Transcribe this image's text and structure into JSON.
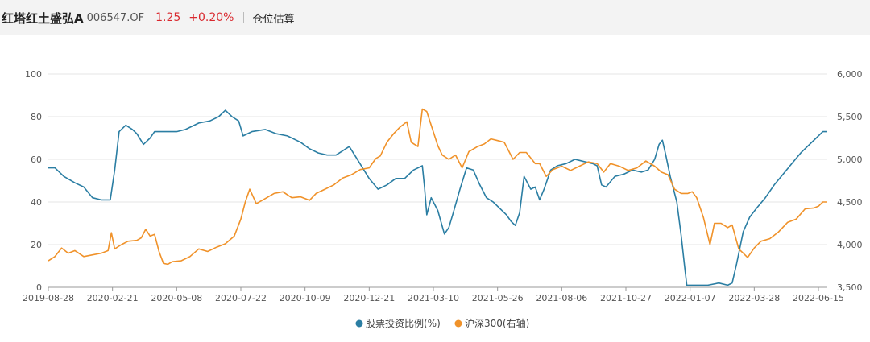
{
  "header": {
    "fund_name": "红塔红土盛弘A",
    "fund_code": "006547.OF",
    "nav": "1.25",
    "change": "+0.20%",
    "tab_label": "仓位估算",
    "up_color": "#d9282e"
  },
  "chart_data": {
    "type": "line",
    "title": "",
    "x_ticks": [
      "2019-08-28",
      "2020-02-21",
      "2020-05-08",
      "2020-07-22",
      "2020-10-09",
      "2020-12-21",
      "2021-03-10",
      "2021-05-26",
      "2021-08-06",
      "2021-10-27",
      "2022-01-07",
      "2022-03-28",
      "2022-06-15"
    ],
    "y_left": {
      "ticks": [
        "0",
        "20",
        "40",
        "60",
        "80",
        "100"
      ],
      "lim": [
        0,
        100
      ]
    },
    "y_right": {
      "ticks": [
        "3,500",
        "4,000",
        "4,500",
        "5,000",
        "5,500",
        "6,000"
      ],
      "lim": [
        3500,
        6000
      ]
    },
    "grid": true,
    "legend_position": "bottom",
    "series": [
      {
        "name": "股票投资比例(%)",
        "axis": "left",
        "color": "#2b7ea3",
        "points": [
          [
            0,
            56
          ],
          [
            0.3,
            56
          ],
          [
            0.7,
            52
          ],
          [
            1.2,
            49
          ],
          [
            1.6,
            47
          ],
          [
            2.0,
            42
          ],
          [
            2.4,
            41
          ],
          [
            2.8,
            41
          ],
          [
            3.0,
            55
          ],
          [
            3.2,
            73
          ],
          [
            3.5,
            76
          ],
          [
            3.8,
            74
          ],
          [
            4.0,
            72
          ],
          [
            4.3,
            67
          ],
          [
            4.6,
            70
          ],
          [
            4.8,
            73
          ],
          [
            5.3,
            73
          ],
          [
            5.8,
            73
          ],
          [
            6.2,
            74
          ],
          [
            6.8,
            77
          ],
          [
            7.3,
            78
          ],
          [
            7.7,
            80
          ],
          [
            8.0,
            83
          ],
          [
            8.3,
            80
          ],
          [
            8.6,
            78
          ],
          [
            8.8,
            71
          ],
          [
            9.2,
            73
          ],
          [
            9.8,
            74
          ],
          [
            10.3,
            72
          ],
          [
            10.8,
            71
          ],
          [
            11.4,
            68
          ],
          [
            11.8,
            65
          ],
          [
            12.2,
            63
          ],
          [
            12.6,
            62
          ],
          [
            13.0,
            62
          ],
          [
            13.3,
            64
          ],
          [
            13.6,
            66
          ],
          [
            13.9,
            61
          ],
          [
            14.2,
            56
          ],
          [
            14.5,
            51
          ],
          [
            14.9,
            46
          ],
          [
            15.3,
            48
          ],
          [
            15.7,
            51
          ],
          [
            16.1,
            51
          ],
          [
            16.5,
            55
          ],
          [
            16.9,
            57
          ],
          [
            17.0,
            47
          ],
          [
            17.1,
            34
          ],
          [
            17.3,
            42
          ],
          [
            17.6,
            36
          ],
          [
            17.9,
            25
          ],
          [
            18.1,
            28
          ],
          [
            18.3,
            35
          ],
          [
            18.6,
            46
          ],
          [
            18.9,
            56
          ],
          [
            19.2,
            55
          ],
          [
            19.5,
            48
          ],
          [
            19.8,
            42
          ],
          [
            20.1,
            40
          ],
          [
            20.4,
            37
          ],
          [
            20.7,
            34
          ],
          [
            20.9,
            31
          ],
          [
            21.1,
            29
          ],
          [
            21.3,
            35
          ],
          [
            21.5,
            52
          ],
          [
            21.8,
            46
          ],
          [
            22.0,
            47
          ],
          [
            22.2,
            41
          ],
          [
            22.4,
            46
          ],
          [
            22.7,
            55
          ],
          [
            23.0,
            57
          ],
          [
            23.4,
            58
          ],
          [
            23.8,
            60
          ],
          [
            24.2,
            59
          ],
          [
            24.6,
            58
          ],
          [
            24.8,
            57
          ],
          [
            25.0,
            48
          ],
          [
            25.2,
            47
          ],
          [
            25.6,
            52
          ],
          [
            26.0,
            53
          ],
          [
            26.4,
            55
          ],
          [
            26.8,
            54
          ],
          [
            27.1,
            55
          ],
          [
            27.4,
            60
          ],
          [
            27.6,
            67
          ],
          [
            27.75,
            69
          ],
          [
            27.9,
            62
          ],
          [
            28.1,
            52
          ],
          [
            28.4,
            40
          ],
          [
            28.6,
            24
          ],
          [
            28.75,
            10
          ],
          [
            28.85,
            1
          ],
          [
            29.2,
            1
          ],
          [
            29.8,
            1
          ],
          [
            30.3,
            2
          ],
          [
            30.7,
            1
          ],
          [
            30.9,
            2
          ],
          [
            31.1,
            11
          ],
          [
            31.4,
            26
          ],
          [
            31.7,
            33
          ],
          [
            32.0,
            37
          ],
          [
            32.4,
            42
          ],
          [
            32.8,
            48
          ],
          [
            33.2,
            53
          ],
          [
            33.6,
            58
          ],
          [
            34.0,
            63
          ],
          [
            34.4,
            67
          ],
          [
            34.7,
            70
          ],
          [
            35.0,
            73
          ],
          [
            35.2,
            73
          ]
        ]
      },
      {
        "name": "沪深300(右轴)",
        "axis": "right",
        "color": "#f0922a",
        "points": [
          [
            0,
            3810
          ],
          [
            0.3,
            3860
          ],
          [
            0.6,
            3960
          ],
          [
            0.9,
            3900
          ],
          [
            1.2,
            3930
          ],
          [
            1.6,
            3860
          ],
          [
            2.0,
            3880
          ],
          [
            2.4,
            3900
          ],
          [
            2.7,
            3930
          ],
          [
            2.85,
            4140
          ],
          [
            3.0,
            3950
          ],
          [
            3.3,
            4000
          ],
          [
            3.6,
            4040
          ],
          [
            4.0,
            4050
          ],
          [
            4.2,
            4080
          ],
          [
            4.4,
            4180
          ],
          [
            4.6,
            4100
          ],
          [
            4.8,
            4120
          ],
          [
            5.0,
            3920
          ],
          [
            5.2,
            3780
          ],
          [
            5.4,
            3770
          ],
          [
            5.6,
            3800
          ],
          [
            6.0,
            3810
          ],
          [
            6.4,
            3860
          ],
          [
            6.8,
            3950
          ],
          [
            7.2,
            3920
          ],
          [
            7.6,
            3970
          ],
          [
            8.0,
            4010
          ],
          [
            8.4,
            4100
          ],
          [
            8.7,
            4300
          ],
          [
            8.9,
            4500
          ],
          [
            9.1,
            4650
          ],
          [
            9.4,
            4480
          ],
          [
            9.8,
            4540
          ],
          [
            10.2,
            4600
          ],
          [
            10.6,
            4620
          ],
          [
            11.0,
            4550
          ],
          [
            11.4,
            4560
          ],
          [
            11.8,
            4520
          ],
          [
            12.1,
            4600
          ],
          [
            12.5,
            4650
          ],
          [
            12.9,
            4700
          ],
          [
            13.3,
            4780
          ],
          [
            13.7,
            4820
          ],
          [
            14.1,
            4880
          ],
          [
            14.5,
            4900
          ],
          [
            14.8,
            5010
          ],
          [
            15.0,
            5040
          ],
          [
            15.3,
            5200
          ],
          [
            15.6,
            5300
          ],
          [
            15.9,
            5380
          ],
          [
            16.2,
            5440
          ],
          [
            16.4,
            5200
          ],
          [
            16.7,
            5150
          ],
          [
            16.9,
            5590
          ],
          [
            17.1,
            5560
          ],
          [
            17.3,
            5400
          ],
          [
            17.6,
            5160
          ],
          [
            17.8,
            5050
          ],
          [
            18.1,
            5000
          ],
          [
            18.4,
            5050
          ],
          [
            18.7,
            4900
          ],
          [
            19.0,
            5090
          ],
          [
            19.4,
            5150
          ],
          [
            19.7,
            5180
          ],
          [
            20.0,
            5240
          ],
          [
            20.3,
            5220
          ],
          [
            20.6,
            5200
          ],
          [
            21.0,
            5000
          ],
          [
            21.3,
            5080
          ],
          [
            21.6,
            5080
          ],
          [
            22.0,
            4950
          ],
          [
            22.2,
            4950
          ],
          [
            22.5,
            4800
          ],
          [
            22.8,
            4880
          ],
          [
            23.2,
            4920
          ],
          [
            23.6,
            4870
          ],
          [
            24.0,
            4920
          ],
          [
            24.4,
            4970
          ],
          [
            24.8,
            4950
          ],
          [
            25.1,
            4850
          ],
          [
            25.4,
            4950
          ],
          [
            25.8,
            4920
          ],
          [
            26.2,
            4870
          ],
          [
            26.6,
            4900
          ],
          [
            27.0,
            4980
          ],
          [
            27.4,
            4920
          ],
          [
            27.7,
            4850
          ],
          [
            28.0,
            4820
          ],
          [
            28.3,
            4650
          ],
          [
            28.6,
            4600
          ],
          [
            28.9,
            4600
          ],
          [
            29.1,
            4620
          ],
          [
            29.3,
            4550
          ],
          [
            29.6,
            4320
          ],
          [
            29.9,
            4000
          ],
          [
            30.1,
            4250
          ],
          [
            30.4,
            4250
          ],
          [
            30.7,
            4200
          ],
          [
            30.9,
            4230
          ],
          [
            31.2,
            3950
          ],
          [
            31.4,
            3900
          ],
          [
            31.6,
            3850
          ],
          [
            31.9,
            3960
          ],
          [
            32.2,
            4040
          ],
          [
            32.6,
            4070
          ],
          [
            33.0,
            4150
          ],
          [
            33.4,
            4260
          ],
          [
            33.8,
            4300
          ],
          [
            34.2,
            4420
          ],
          [
            34.6,
            4430
          ],
          [
            34.8,
            4450
          ],
          [
            35.0,
            4500
          ],
          [
            35.2,
            4500
          ]
        ]
      }
    ]
  }
}
